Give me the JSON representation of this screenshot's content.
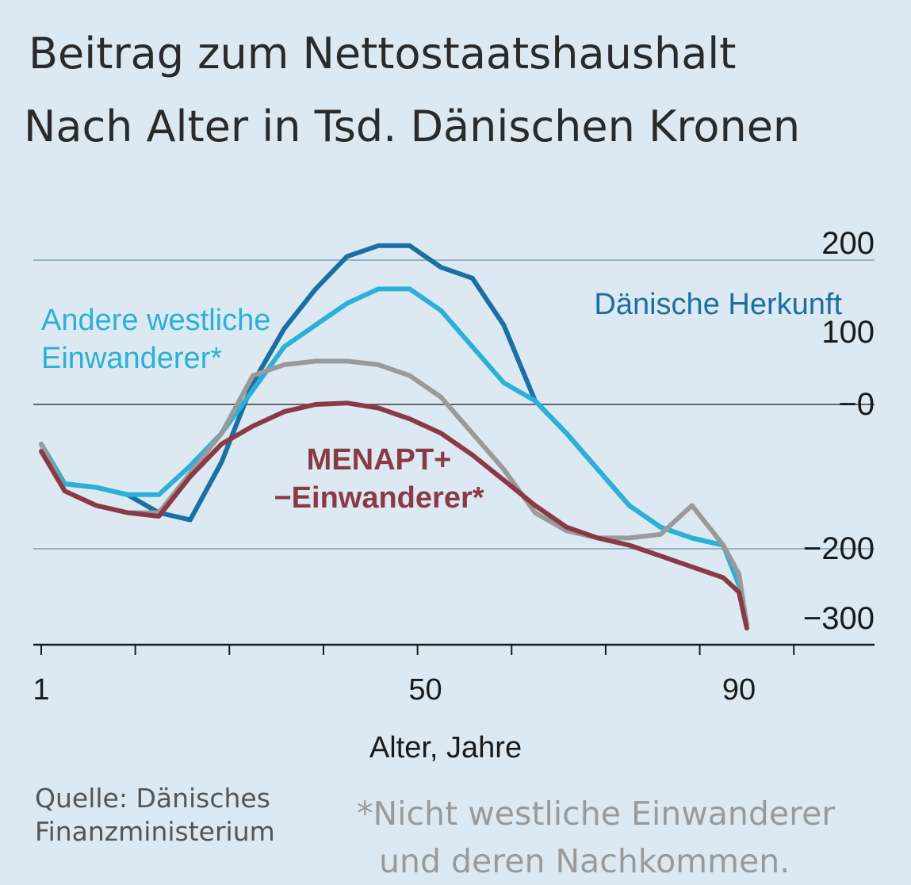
{
  "title": "Beitrag zum Nettostaatshaushalt",
  "subtitle": "Nach Alter in Tsd. Dänischen Kronen",
  "source": {
    "line1": "Quelle: Dänisches",
    "line2": "Finanzministerium"
  },
  "footnote": {
    "line1": "*Nicht westliche Einwanderer",
    "line2": "und deren Nachkommen."
  },
  "chart_data": {
    "type": "line",
    "xlabel": "Alter, Jahre",
    "ylabel": "",
    "xlim": [
      0,
      105
    ],
    "ylim": [
      -330,
      210
    ],
    "grid": true,
    "x_ticks": [
      1,
      13,
      25,
      37,
      49,
      61,
      73,
      85,
      97
    ],
    "x_tick_labels": [
      {
        "x": 1,
        "label": "1"
      },
      {
        "x": 50,
        "label": "50"
      },
      {
        "x": 90,
        "label": "90"
      }
    ],
    "y_gridlines": [
      200,
      0,
      -200
    ],
    "y_tick_labels": [
      {
        "y": 200,
        "label": "200"
      },
      {
        "y": 100,
        "label": "100"
      },
      {
        "y": 0,
        "label": "−0"
      },
      {
        "y": -200,
        "label": "−200"
      },
      {
        "y": -300,
        "label": "−300"
      }
    ],
    "x": [
      1,
      4,
      8,
      12,
      16,
      20,
      24,
      28,
      32,
      36,
      40,
      44,
      48,
      52,
      56,
      60,
      64,
      68,
      72,
      76,
      80,
      84,
      88,
      90,
      91
    ],
    "series": [
      {
        "name": "Dänische Herkunft",
        "color": "#1a6fa6",
        "label": [
          "Dänische Herkunft"
        ],
        "values": [
          -55,
          -110,
          -115,
          -125,
          -150,
          -160,
          -80,
          30,
          105,
          160,
          205,
          220,
          220,
          190,
          175,
          110,
          5,
          -40,
          -90,
          -140,
          -170,
          -185,
          -195,
          -250,
          -305
        ]
      },
      {
        "name": "Andere westliche Einwanderer*",
        "color": "#2ab0da",
        "label": [
          "Andere westliche",
          "Einwanderer*"
        ],
        "values": [
          -55,
          -110,
          -115,
          -125,
          -125,
          -85,
          -40,
          20,
          80,
          110,
          140,
          160,
          160,
          130,
          80,
          30,
          5,
          -40,
          -90,
          -140,
          -170,
          -185,
          -195,
          -250,
          -305
        ]
      },
      {
        "name": "",
        "color": "#9a9a9a",
        "values": [
          -55,
          -120,
          -140,
          -150,
          -150,
          -95,
          -40,
          40,
          55,
          60,
          60,
          55,
          40,
          10,
          -40,
          -90,
          -150,
          -175,
          -185,
          -185,
          -180,
          -140,
          -195,
          -235,
          -305
        ]
      },
      {
        "name": "MENAPT+ −Einwanderer*",
        "color": "#8b3a45",
        "label": [
          "MENAPT+",
          "−Einwanderer*"
        ],
        "values": [
          -65,
          -120,
          -140,
          -150,
          -155,
          -100,
          -55,
          -30,
          -10,
          0,
          2,
          -5,
          -20,
          -40,
          -70,
          -105,
          -140,
          -170,
          -185,
          -195,
          -210,
          -225,
          -240,
          -260,
          -310
        ]
      }
    ]
  }
}
